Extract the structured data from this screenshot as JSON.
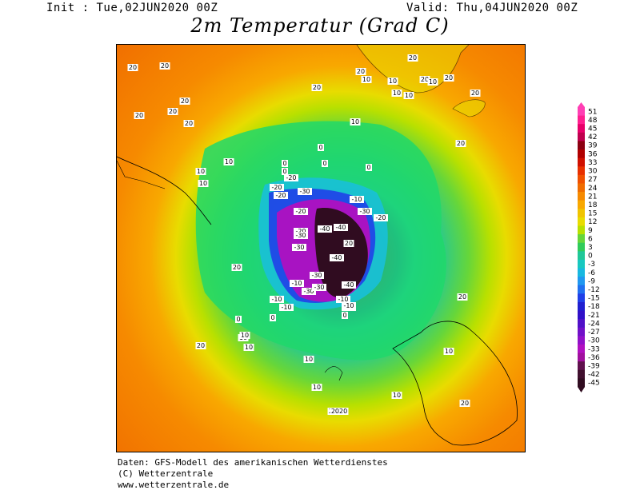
{
  "header": {
    "init": "Init : Tue,02JUN2020 00Z",
    "valid": "Valid: Thu,04JUN2020 00Z",
    "title": "2m Temperatur (Grad C)"
  },
  "legend": {
    "levels": [
      "51",
      "48",
      "45",
      "42",
      "39",
      "36",
      "33",
      "30",
      "27",
      "24",
      "21",
      "18",
      "15",
      "12",
      "9",
      "6",
      "3",
      "0",
      "-3",
      "-6",
      "-9",
      "-12",
      "-15",
      "-18",
      "-21",
      "-24",
      "-27",
      "-30",
      "-33",
      "-36",
      "-39",
      "-42",
      "-45"
    ],
    "colors": [
      "#ff3fb4",
      "#ff1f8f",
      "#e8006a",
      "#c0004f",
      "#8c0012",
      "#b00000",
      "#d01000",
      "#e83000",
      "#f05000",
      "#f06c00",
      "#f68a00",
      "#f8a800",
      "#f0c400",
      "#e8dc00",
      "#b8e000",
      "#66d63a",
      "#30cc5a",
      "#20c898",
      "#18c8c0",
      "#18b8e0",
      "#2098f0",
      "#2070f0",
      "#2040e8",
      "#2020d0",
      "#3010c8",
      "#5010c8",
      "#7010c8",
      "#9010c8",
      "#b010c0",
      "#a0109e",
      "#60104e",
      "#40102e",
      "#300c20"
    ]
  },
  "map": {
    "contour_labels": [
      {
        "t": "20"
      },
      {
        "t": "20"
      },
      {
        "t": "20"
      },
      {
        "t": "20"
      },
      {
        "t": "20"
      },
      {
        "t": "20"
      },
      {
        "t": "20"
      },
      {
        "t": "20"
      },
      {
        "t": "10"
      },
      {
        "t": "10"
      },
      {
        "t": "10"
      },
      {
        "t": "10"
      },
      {
        "t": "10"
      },
      {
        "t": "10"
      },
      {
        "t": "0"
      },
      {
        "t": "0"
      },
      {
        "t": "0"
      },
      {
        "t": "0"
      },
      {
        "t": "-10"
      },
      {
        "t": "-10"
      },
      {
        "t": "-10"
      },
      {
        "t": "-20"
      },
      {
        "t": "-20"
      },
      {
        "t": "-20"
      },
      {
        "t": "-20"
      },
      {
        "t": "-20"
      },
      {
        "t": "-30"
      },
      {
        "t": "-30"
      },
      {
        "t": "-30"
      },
      {
        "t": "-30"
      },
      {
        "t": "-30"
      },
      {
        "t": "-40"
      },
      {
        "t": "-40"
      },
      {
        "t": "-40"
      },
      {
        "t": "20"
      },
      {
        "t": "20"
      },
      {
        "t": "20"
      },
      {
        "t": "20"
      },
      {
        "t": "20"
      },
      {
        "t": "20"
      },
      {
        "t": "20"
      },
      {
        "t": "20"
      },
      {
        "t": "10"
      },
      {
        "t": "10"
      },
      {
        "t": "10"
      },
      {
        "t": "10"
      },
      {
        "t": "10"
      },
      {
        "t": "10"
      },
      {
        "t": "10"
      },
      {
        "t": "10"
      },
      {
        "t": "20"
      },
      {
        "t": "20"
      },
      {
        "t": "10"
      },
      {
        "t": "10"
      },
      {
        "t": "-10"
      },
      {
        "t": "-10"
      },
      {
        "t": "-10"
      },
      {
        "t": "-10"
      },
      {
        "t": "-20"
      },
      {
        "t": "-30"
      },
      {
        "t": "-30"
      },
      {
        "t": "-40"
      },
      {
        "t": "0"
      },
      {
        "t": "0"
      },
      {
        "t": "0"
      },
      {
        "t": "0"
      },
      {
        "t": "20"
      },
      {
        "t": "2020"
      }
    ]
  },
  "footer": {
    "line1": "Daten: GFS-Modell des amerikanischen Wetterdienstes",
    "line2": "(C) Wetterzentrale",
    "line3": "www.wetterzentrale.de"
  }
}
